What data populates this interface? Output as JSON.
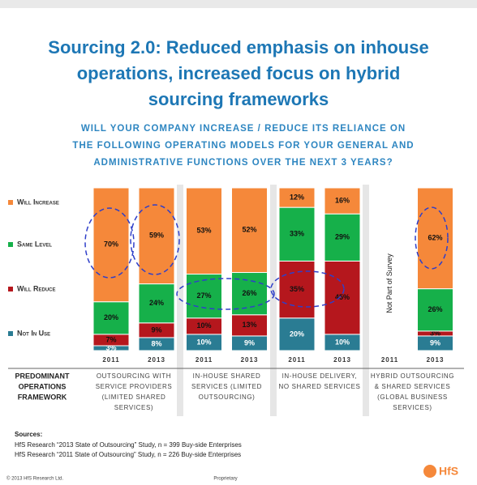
{
  "chart_data": {
    "type": "bar",
    "stacked": true,
    "title": [
      "Sourcing 2.0: Reduced emphasis on inhouse",
      "operations, increased focus on hybrid",
      "sourcing frameworks"
    ],
    "subtitle": [
      "WILL YOUR COMPANY INCREASE / REDUCE ITS RELIANCE ON",
      "THE FOLLOWING OPERATING MODELS FOR YOUR GENERAL AND",
      "ADMINISTRATIVE FUNCTIONS OVER THE NEXT 3 YEARS?"
    ],
    "categories": [
      "2011",
      "2013",
      "2011",
      "2013",
      "2011",
      "2013",
      "2011",
      "2013"
    ],
    "groups": [
      [
        "OUTSOURCING WITH",
        "SERVICE PROVIDERS",
        "(LIMITED SHARED",
        "SERVICES)"
      ],
      [
        "IN-HOUSE SHARED",
        "SERVICES (LIMITED",
        "OUTSOURCING)"
      ],
      [
        "IN-HOUSE DELIVERY,",
        "NO SHARED SERVICES"
      ],
      [
        "HYBRID OUTSOURCING",
        "& SHARED SERVICES",
        "(GLOBAL BUSINESS",
        "SERVICES)"
      ]
    ],
    "row_label": [
      "PREDOMINANT",
      "OPERATIONS",
      "FRAMEWORK"
    ],
    "ylim": [
      0,
      100
    ],
    "series": [
      {
        "name": "Not In Use",
        "color": "#2a7c93",
        "values": [
          3,
          8,
          10,
          9,
          20,
          10,
          null,
          9
        ],
        "value_labels": [
          "3%",
          "8%",
          "10%",
          "9%",
          "20%",
          "10%",
          null,
          "9%"
        ]
      },
      {
        "name": "Will Reduce",
        "color": "#b5171d",
        "values": [
          7,
          9,
          10,
          13,
          35,
          45,
          null,
          3
        ],
        "value_labels": [
          "7%",
          "9%",
          "10%",
          "13%",
          "35%",
          "45%",
          null,
          "3%"
        ]
      },
      {
        "name": "Same Level",
        "color": "#16b04a",
        "values": [
          20,
          24,
          27,
          26,
          33,
          29,
          null,
          26
        ],
        "value_labels": [
          "20%",
          "24%",
          "27%",
          "26%",
          "33%",
          "29%",
          null,
          "26%"
        ]
      },
      {
        "name": "Will Increase",
        "color": "#f5883a",
        "values": [
          70,
          59,
          53,
          52,
          12,
          16,
          null,
          62
        ],
        "value_labels": [
          "70%",
          "59%",
          "53%",
          "52%",
          "12%",
          "16%",
          null,
          "62%"
        ]
      }
    ],
    "annotations": [
      "Not Part of Survey"
    ]
  },
  "sources": {
    "heading": "Sources:",
    "lines": [
      "HfS Research “2013 State of Outsourcing” Study, n = 399 Buy-side Enterprises",
      "HfS Research “2011 State of Outsourcing” Study, n = 226 Buy-side Enterprises"
    ]
  },
  "footer": {
    "copyright": "© 2013 HfS Research Ltd.",
    "center": "Proprietary",
    "logo": "HfS"
  }
}
